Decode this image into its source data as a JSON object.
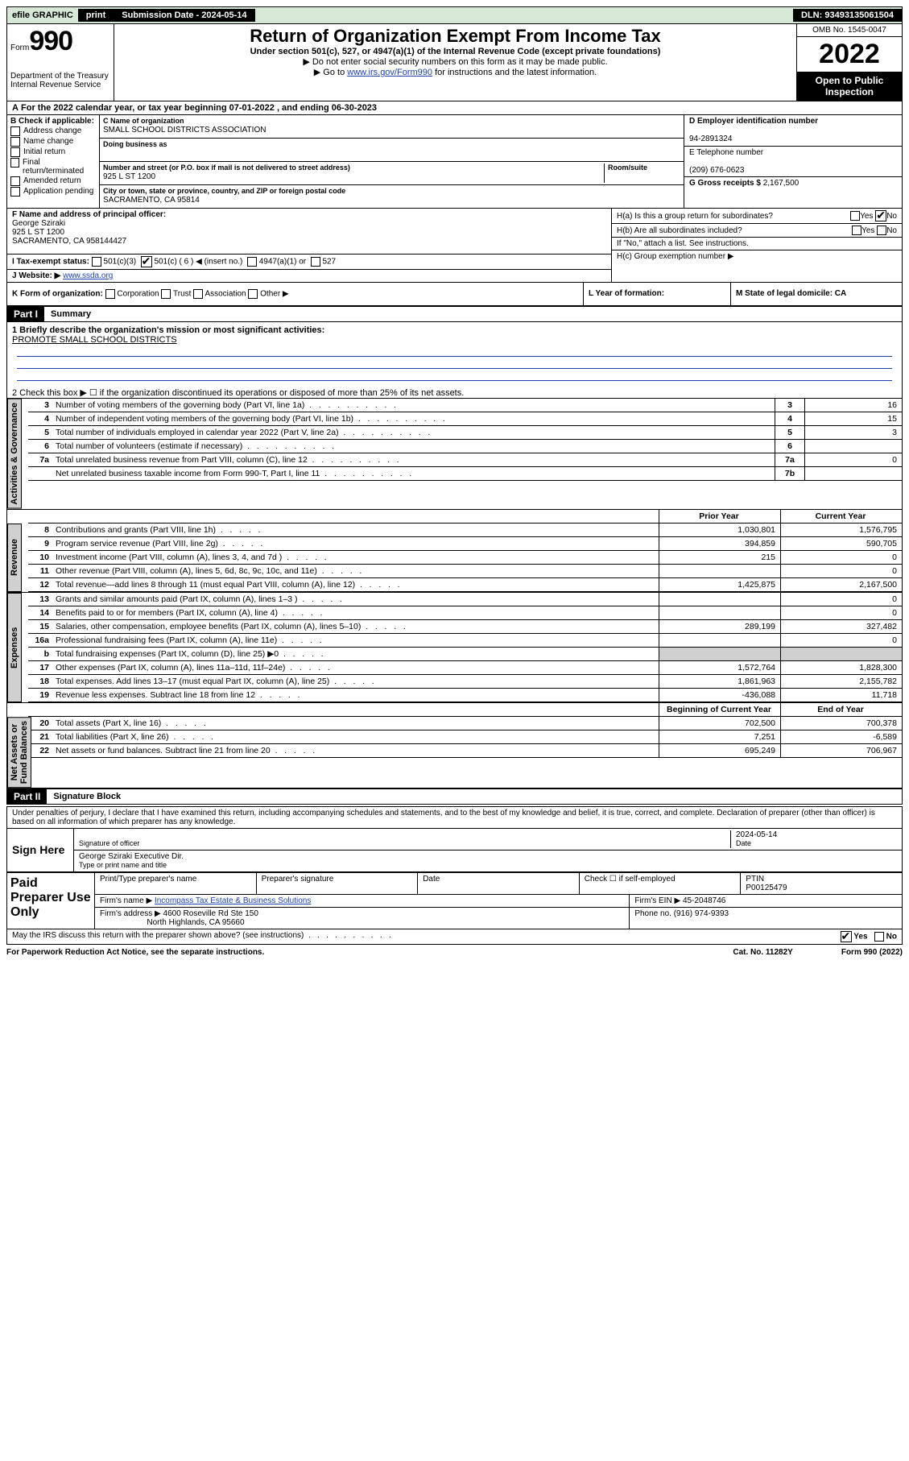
{
  "topbar": {
    "efile": "efile GRAPHIC",
    "print": "print",
    "submission": "Submission Date - 2024-05-14",
    "dln": "DLN: 93493135061504"
  },
  "header": {
    "form_word": "Form",
    "form_num": "990",
    "title": "Return of Organization Exempt From Income Tax",
    "sub1": "Under section 501(c), 527, or 4947(a)(1) of the Internal Revenue Code (except private foundations)",
    "sub2": "▶ Do not enter social security numbers on this form as it may be made public.",
    "sub3_pre": "▶ Go to ",
    "sub3_link": "www.irs.gov/Form990",
    "sub3_post": " for instructions and the latest information.",
    "dept": "Department of the Treasury\nInternal Revenue Service",
    "omb": "OMB No. 1545-0047",
    "year": "2022",
    "open": "Open to Public Inspection"
  },
  "A": {
    "line": "For the 2022 calendar year, or tax year beginning 07-01-2022   , and ending 06-30-2023"
  },
  "B": {
    "title": "B Check if applicable:",
    "opts": [
      "Address change",
      "Name change",
      "Initial return",
      "Final return/terminated",
      "Amended return",
      "Application pending"
    ]
  },
  "C": {
    "label_name": "C Name of organization",
    "name": "SMALL SCHOOL DISTRICTS ASSOCIATION",
    "dba_label": "Doing business as",
    "street_label": "Number and street (or P.O. box if mail is not delivered to street address)",
    "room_label": "Room/suite",
    "street": "925 L ST 1200",
    "city_label": "City or town, state or province, country, and ZIP or foreign postal code",
    "city": "SACRAMENTO, CA  95814"
  },
  "D": {
    "label": "D Employer identification number",
    "val": "94-2891324"
  },
  "E": {
    "label": "E Telephone number",
    "val": "(209) 676-0623"
  },
  "G": {
    "label": "G Gross receipts $",
    "val": "2,167,500"
  },
  "F": {
    "label": "F  Name and address of principal officer:",
    "name": "George Sziraki",
    "addr1": "925 L ST 1200",
    "addr2": "SACRAMENTO, CA  958144427"
  },
  "H": {
    "a": "H(a)  Is this a group return for subordinates?",
    "a_yes": "Yes",
    "a_no": "No",
    "b": "H(b)  Are all subordinates included?",
    "b_yes": "Yes",
    "b_no": "No",
    "b_note": "If \"No,\" attach a list. See instructions.",
    "c": "H(c)  Group exemption number ▶"
  },
  "I": {
    "label": "I   Tax-exempt status:",
    "o1": "501(c)(3)",
    "o2": "501(c) ( 6 ) ◀ (insert no.)",
    "o3": "4947(a)(1) or",
    "o4": "527"
  },
  "J": {
    "label": "J   Website: ▶",
    "val": "www.ssda.org"
  },
  "K": {
    "label": "K Form of organization:",
    "o1": "Corporation",
    "o2": "Trust",
    "o3": "Association",
    "o4": "Other ▶"
  },
  "L": {
    "label": "L Year of formation:"
  },
  "M": {
    "label": "M State of legal domicile: CA"
  },
  "part1": {
    "hdr": "Part I",
    "title": "Summary",
    "l1a": "1  Briefly describe the organization's mission or most significant activities:",
    "l1b": "PROMOTE SMALL SCHOOL DISTRICTS",
    "l2": "2   Check this box ▶ ☐  if the organization discontinued its operations or disposed of more than 25% of its net assets.",
    "rows_ag": [
      {
        "n": "3",
        "t": "Number of voting members of the governing body (Part VI, line 1a)",
        "b": "3",
        "v": "16"
      },
      {
        "n": "4",
        "t": "Number of independent voting members of the governing body (Part VI, line 1b)",
        "b": "4",
        "v": "15"
      },
      {
        "n": "5",
        "t": "Total number of individuals employed in calendar year 2022 (Part V, line 2a)",
        "b": "5",
        "v": "3"
      },
      {
        "n": "6",
        "t": "Total number of volunteers (estimate if necessary)",
        "b": "6",
        "v": ""
      },
      {
        "n": "7a",
        "t": "Total unrelated business revenue from Part VIII, column (C), line 12",
        "b": "7a",
        "v": "0"
      },
      {
        "n": "",
        "t": "Net unrelated business taxable income from Form 990-T, Part I, line 11",
        "b": "7b",
        "v": ""
      }
    ],
    "col_prior": "Prior Year",
    "col_current": "Current Year",
    "rev": [
      {
        "n": "8",
        "t": "Contributions and grants (Part VIII, line 1h)",
        "p": "1,030,801",
        "c": "1,576,795"
      },
      {
        "n": "9",
        "t": "Program service revenue (Part VIII, line 2g)",
        "p": "394,859",
        "c": "590,705"
      },
      {
        "n": "10",
        "t": "Investment income (Part VIII, column (A), lines 3, 4, and 7d )",
        "p": "215",
        "c": "0"
      },
      {
        "n": "11",
        "t": "Other revenue (Part VIII, column (A), lines 5, 6d, 8c, 9c, 10c, and 11e)",
        "p": "",
        "c": "0"
      },
      {
        "n": "12",
        "t": "Total revenue—add lines 8 through 11 (must equal Part VIII, column (A), line 12)",
        "p": "1,425,875",
        "c": "2,167,500"
      }
    ],
    "exp": [
      {
        "n": "13",
        "t": "Grants and similar amounts paid (Part IX, column (A), lines 1–3 )",
        "p": "",
        "c": "0"
      },
      {
        "n": "14",
        "t": "Benefits paid to or for members (Part IX, column (A), line 4)",
        "p": "",
        "c": "0"
      },
      {
        "n": "15",
        "t": "Salaries, other compensation, employee benefits (Part IX, column (A), lines 5–10)",
        "p": "289,199",
        "c": "327,482"
      },
      {
        "n": "16a",
        "t": "Professional fundraising fees (Part IX, column (A), line 11e)",
        "p": "",
        "c": "0"
      },
      {
        "n": "b",
        "t": "Total fundraising expenses (Part IX, column (D), line 25) ▶0",
        "p": "shade",
        "c": "shade"
      },
      {
        "n": "17",
        "t": "Other expenses (Part IX, column (A), lines 11a–11d, 11f–24e)",
        "p": "1,572,764",
        "c": "1,828,300"
      },
      {
        "n": "18",
        "t": "Total expenses. Add lines 13–17 (must equal Part IX, column (A), line 25)",
        "p": "1,861,963",
        "c": "2,155,782"
      },
      {
        "n": "19",
        "t": "Revenue less expenses. Subtract line 18 from line 12",
        "p": "-436,088",
        "c": "11,718"
      }
    ],
    "col_beg": "Beginning of Current Year",
    "col_end": "End of Year",
    "na": [
      {
        "n": "20",
        "t": "Total assets (Part X, line 16)",
        "p": "702,500",
        "c": "700,378"
      },
      {
        "n": "21",
        "t": "Total liabilities (Part X, line 26)",
        "p": "7,251",
        "c": "-6,589"
      },
      {
        "n": "22",
        "t": "Net assets or fund balances. Subtract line 21 from line 20",
        "p": "695,249",
        "c": "706,967"
      }
    ],
    "tab_ag": "Activities & Governance",
    "tab_rev": "Revenue",
    "tab_exp": "Expenses",
    "tab_na": "Net Assets or\nFund Balances"
  },
  "part2": {
    "hdr": "Part II",
    "title": "Signature Block",
    "decl": "Under penalties of perjury, I declare that I have examined this return, including accompanying schedules and statements, and to the best of my knowledge and belief, it is true, correct, and complete. Declaration of preparer (other than officer) is based on all information of which preparer has any knowledge.",
    "sign_here": "Sign Here",
    "sig_of": "Signature of officer",
    "date": "Date",
    "date_val": "2024-05-14",
    "name_title": "George Sziraki  Executive Dir.",
    "type_lbl": "Type or print name and title",
    "paid": "Paid Preparer Use Only",
    "p_name": "Print/Type preparer's name",
    "p_sig": "Preparer's signature",
    "p_date": "Date",
    "p_check": "Check ☐ if self-employed",
    "ptin_lbl": "PTIN",
    "ptin": "P00125479",
    "firm_name_lbl": "Firm's name    ▶",
    "firm_name": "Incompass Tax Estate & Business Solutions",
    "firm_ein_lbl": "Firm's EIN ▶",
    "firm_ein": "45-2048746",
    "firm_addr_lbl": "Firm's address ▶",
    "firm_addr1": "4600 Roseville Rd Ste 150",
    "firm_addr2": "North Highlands, CA  95660",
    "phone_lbl": "Phone no.",
    "phone": "(916) 974-9393",
    "may": "May the IRS discuss this return with the preparer shown above? (see instructions)",
    "yes": "Yes",
    "no": "No"
  },
  "footer": {
    "left": "For Paperwork Reduction Act Notice, see the separate instructions.",
    "mid": "Cat. No. 11282Y",
    "right": "Form 990 (2022)"
  }
}
